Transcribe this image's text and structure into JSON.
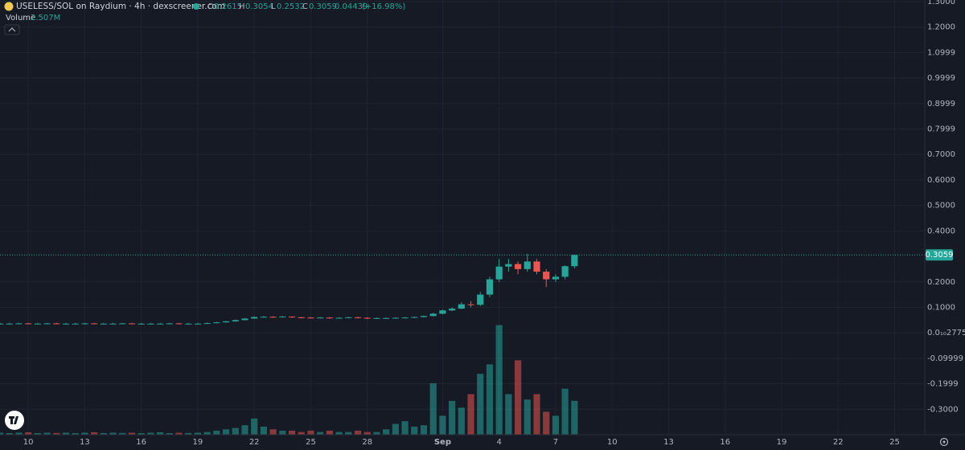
{
  "chart_data": {
    "type": "candlestick",
    "legend": {
      "symbol": "USELESS/SOL on Raydium · 4h · dexscreener.com",
      "open_key": "O",
      "open": 0.2615,
      "high_key": "H",
      "high": 0.3054,
      "low_key": "L",
      "low": 0.2532,
      "close_key": "C",
      "close": 0.3059,
      "change": 0.04439,
      "change_label": "(+16.98%)"
    },
    "volume_title": "Volume",
    "volume_last_label": "2.507M",
    "last_price": {
      "value": 0.3059,
      "label": "0.3059"
    },
    "up_color": "#26a69a",
    "down_color": "#ef5350",
    "xlim": [
      8.5,
      57.6
    ],
    "xticks": [
      10,
      13,
      16,
      19,
      22,
      25,
      28,
      {
        "value": 32,
        "label": "Sep"
      },
      {
        "value": 35,
        "label": "4"
      },
      {
        "value": 38,
        "label": "7"
      },
      {
        "value": 41,
        "label": "10"
      },
      {
        "value": 44,
        "label": "13"
      },
      {
        "value": 47,
        "label": "16"
      },
      {
        "value": 50,
        "label": "19"
      },
      {
        "value": 53,
        "label": "22"
      },
      {
        "value": 56,
        "label": "25"
      }
    ],
    "ylim": [
      -0.4,
      1.3
    ],
    "yticks": [
      {
        "value": 1.3,
        "label": "1.3000"
      },
      {
        "value": 1.2,
        "label": "1.2000"
      },
      {
        "value": 1.0999,
        "label": "1.0999"
      },
      {
        "value": 0.9999,
        "label": "0.9999"
      },
      {
        "value": 0.8999,
        "label": "0.8999"
      },
      {
        "value": 0.7999,
        "label": "0.7999"
      },
      {
        "value": 0.7,
        "label": "0.7000"
      },
      {
        "value": 0.6,
        "label": "0.6000"
      },
      {
        "value": 0.5,
        "label": "0.5000"
      },
      {
        "value": 0.4,
        "label": "0.4000"
      },
      {
        "value": 0.2,
        "label": "0.2000"
      },
      {
        "value": 0.1,
        "label": "0.1000"
      },
      {
        "value": 2.775e-11,
        "label": "0.0₁₀2775"
      },
      {
        "value": -0.09999,
        "label": "-0.09999"
      },
      {
        "value": -0.1999,
        "label": "-0.1999"
      },
      {
        "value": -0.3,
        "label": "-0.3000"
      }
    ],
    "volume_lim": [
      0,
      32
    ],
    "grid": true,
    "candles": {
      "x": [
        8.5,
        9,
        9.5,
        10,
        10.5,
        11,
        11.5,
        12,
        12.5,
        13,
        13.5,
        14,
        14.5,
        15,
        15.5,
        16,
        16.5,
        17,
        17.5,
        18,
        18.5,
        19,
        19.5,
        20,
        20.5,
        21,
        21.5,
        22,
        22.5,
        23,
        23.5,
        24,
        24.5,
        25,
        25.5,
        26,
        26.5,
        27,
        27.5,
        28,
        28.5,
        29,
        29.5,
        30,
        30.5,
        31,
        31.5,
        32,
        32.5,
        33,
        33.5,
        34,
        34.5,
        35,
        35.5,
        36,
        36.5,
        37,
        37.5,
        38,
        38.5,
        39
      ],
      "open": [
        0.036,
        0.036,
        0.036,
        0.037,
        0.036,
        0.036,
        0.037,
        0.036,
        0.036,
        0.036,
        0.037,
        0.036,
        0.036,
        0.036,
        0.037,
        0.036,
        0.036,
        0.036,
        0.036,
        0.037,
        0.036,
        0.036,
        0.036,
        0.038,
        0.041,
        0.045,
        0.05,
        0.056,
        0.062,
        0.063,
        0.062,
        0.064,
        0.061,
        0.06,
        0.059,
        0.06,
        0.058,
        0.059,
        0.061,
        0.059,
        0.057,
        0.058,
        0.058,
        0.059,
        0.06,
        0.062,
        0.066,
        0.075,
        0.088,
        0.095,
        0.112,
        0.11,
        0.15,
        0.21,
        0.26,
        0.27,
        0.25,
        0.28,
        0.24,
        0.21,
        0.22,
        0.2615
      ],
      "high": [
        0.039,
        0.039,
        0.039,
        0.039,
        0.039,
        0.039,
        0.039,
        0.039,
        0.039,
        0.039,
        0.039,
        0.039,
        0.039,
        0.039,
        0.039,
        0.039,
        0.039,
        0.039,
        0.039,
        0.039,
        0.039,
        0.039,
        0.04,
        0.043,
        0.047,
        0.052,
        0.058,
        0.064,
        0.066,
        0.065,
        0.066,
        0.064,
        0.063,
        0.062,
        0.062,
        0.062,
        0.061,
        0.063,
        0.063,
        0.061,
        0.06,
        0.06,
        0.061,
        0.062,
        0.064,
        0.068,
        0.078,
        0.091,
        0.1,
        0.12,
        0.125,
        0.16,
        0.22,
        0.29,
        0.29,
        0.28,
        0.31,
        0.29,
        0.25,
        0.23,
        0.265,
        0.3054
      ],
      "low": [
        0.034,
        0.034,
        0.034,
        0.034,
        0.034,
        0.034,
        0.034,
        0.034,
        0.034,
        0.034,
        0.034,
        0.034,
        0.034,
        0.034,
        0.034,
        0.034,
        0.034,
        0.034,
        0.034,
        0.034,
        0.034,
        0.034,
        0.035,
        0.037,
        0.04,
        0.044,
        0.049,
        0.055,
        0.06,
        0.059,
        0.06,
        0.058,
        0.057,
        0.056,
        0.057,
        0.055,
        0.056,
        0.057,
        0.056,
        0.054,
        0.055,
        0.055,
        0.056,
        0.057,
        0.058,
        0.06,
        0.064,
        0.073,
        0.085,
        0.093,
        0.1,
        0.105,
        0.14,
        0.2,
        0.24,
        0.23,
        0.24,
        0.23,
        0.18,
        0.2,
        0.21,
        0.2532
      ],
      "close": [
        0.036,
        0.036,
        0.037,
        0.036,
        0.036,
        0.037,
        0.036,
        0.036,
        0.036,
        0.037,
        0.036,
        0.036,
        0.036,
        0.037,
        0.036,
        0.036,
        0.036,
        0.036,
        0.037,
        0.036,
        0.036,
        0.036,
        0.038,
        0.041,
        0.045,
        0.05,
        0.056,
        0.062,
        0.063,
        0.062,
        0.064,
        0.061,
        0.06,
        0.059,
        0.06,
        0.058,
        0.059,
        0.061,
        0.059,
        0.057,
        0.058,
        0.058,
        0.059,
        0.06,
        0.062,
        0.066,
        0.075,
        0.088,
        0.095,
        0.112,
        0.11,
        0.15,
        0.21,
        0.26,
        0.27,
        0.25,
        0.28,
        0.24,
        0.21,
        0.22,
        0.2615,
        0.3059
      ],
      "volume": [
        0.15,
        0.12,
        0.15,
        0.18,
        0.12,
        0.15,
        0.13,
        0.15,
        0.12,
        0.15,
        0.18,
        0.12,
        0.15,
        0.13,
        0.15,
        0.12,
        0.15,
        0.18,
        0.12,
        0.15,
        0.13,
        0.15,
        0.2,
        0.3,
        0.4,
        0.5,
        0.7,
        1.2,
        0.6,
        0.4,
        0.3,
        0.3,
        0.2,
        0.3,
        0.2,
        0.3,
        0.2,
        0.2,
        0.3,
        0.2,
        0.2,
        0.4,
        0.8,
        1.0,
        0.6,
        0.7,
        3.8,
        1.4,
        2.5,
        2.0,
        3.0,
        4.5,
        5.2,
        8.1,
        3.0,
        5.5,
        2.6,
        3.0,
        1.7,
        1.4,
        3.4,
        2.507
      ]
    }
  }
}
